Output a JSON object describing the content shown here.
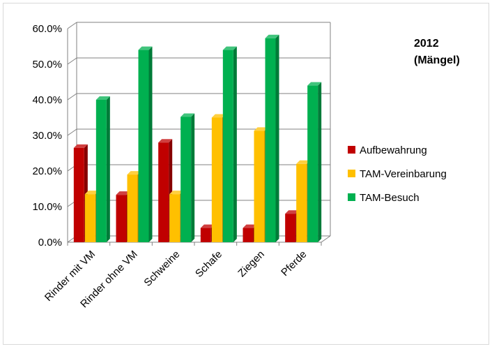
{
  "chart_data": {
    "type": "bar",
    "title_lines": [
      "2012",
      "(Mängel)"
    ],
    "categories": [
      "Rinder mit VM",
      "Rinder ohne VM",
      "Schweine",
      "Schafe",
      "Ziegen",
      "Pferde"
    ],
    "series": [
      {
        "name": "Aufbewahrung",
        "color": "#c00000",
        "values": [
          26.5,
          13.3,
          28.0,
          4.0,
          4.0,
          8.0
        ]
      },
      {
        "name": "TAM-Vereinbarung",
        "color": "#ffc000",
        "values": [
          13.5,
          19.0,
          13.5,
          35.0,
          31.3,
          22.0
        ]
      },
      {
        "name": "TAM-Besuch",
        "color": "#00b050",
        "values": [
          40.0,
          54.0,
          35.2,
          54.0,
          57.3,
          44.0
        ]
      }
    ],
    "yticks": [
      "0.0%",
      "10.0%",
      "20.0%",
      "30.0%",
      "40.0%",
      "50.0%",
      "60.0%"
    ],
    "ylim": [
      0,
      60
    ],
    "grid": true,
    "legend_position": "right"
  }
}
